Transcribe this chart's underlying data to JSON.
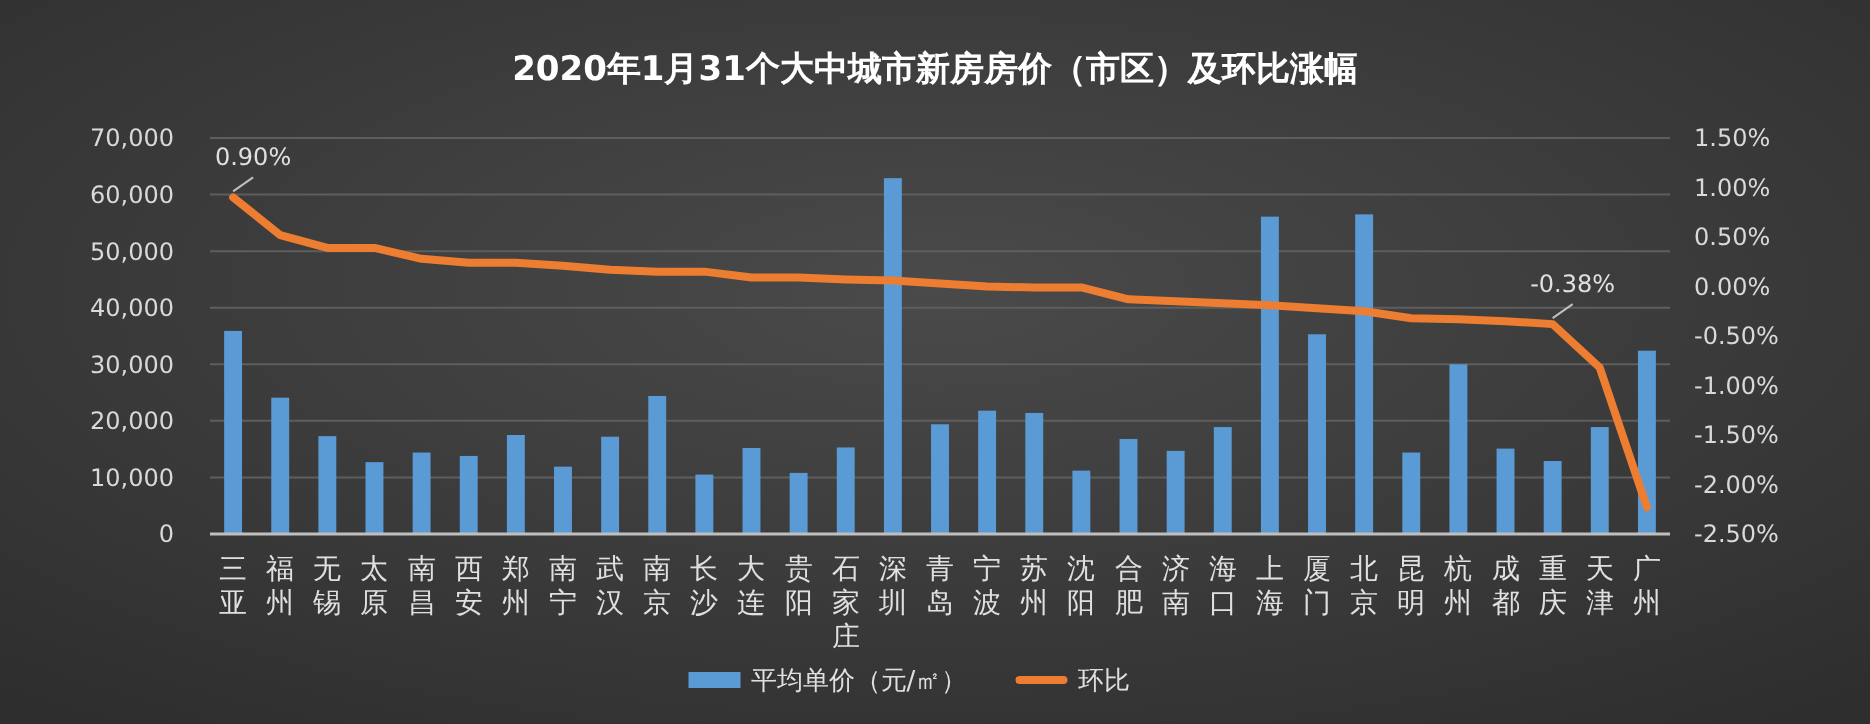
{
  "chart_data": {
    "type": "bar",
    "title": "2020年1月31个大中城市新房房价（市区）及环比涨幅",
    "categories": [
      "三亚",
      "福州",
      "无锡",
      "太原",
      "南昌",
      "西安",
      "郑州",
      "南宁",
      "武汉",
      "南京",
      "长沙",
      "大连",
      "贵阳",
      "石家庄",
      "深圳",
      "青岛",
      "宁波",
      "苏州",
      "沈阳",
      "合肥",
      "济南",
      "海口",
      "上海",
      "厦门",
      "北京",
      "昆明",
      "杭州",
      "成都",
      "重庆",
      "天津",
      "广州"
    ],
    "series": [
      {
        "name": "平均单价（元/㎡）",
        "color": "#5b9bd5",
        "values": [
          35900,
          24100,
          17300,
          12700,
          14400,
          13800,
          17500,
          11900,
          17200,
          24400,
          10500,
          15200,
          10800,
          15300,
          62900,
          19400,
          21800,
          21400,
          11200,
          16800,
          14700,
          18900,
          56100,
          35300,
          56500,
          14400,
          30000,
          15100,
          12900,
          18900,
          32400
        ]
      },
      {
        "name": "环比",
        "type": "line",
        "axis": "y2",
        "color": "#ed7d31",
        "values": [
          0.9,
          0.52,
          0.39,
          0.39,
          0.28,
          0.24,
          0.24,
          0.21,
          0.17,
          0.15,
          0.15,
          0.09,
          0.09,
          0.07,
          0.06,
          0.03,
          0.0,
          -0.01,
          -0.01,
          -0.13,
          -0.15,
          -0.17,
          -0.19,
          -0.22,
          -0.25,
          -0.32,
          -0.33,
          -0.35,
          -0.38,
          -0.82,
          -2.23
        ],
        "value_labels": [
          "0.90%",
          null,
          null,
          null,
          null,
          null,
          null,
          null,
          null,
          null,
          null,
          null,
          null,
          null,
          null,
          null,
          null,
          null,
          null,
          null,
          null,
          null,
          null,
          null,
          null,
          null,
          null,
          null,
          "-0.38%",
          null,
          null
        ]
      }
    ],
    "ylim": [
      0,
      70000
    ],
    "yticks": [
      0,
      {
        "value": 10000,
        "label": "10,000"
      },
      {
        "value": 20000,
        "label": "20,000"
      },
      {
        "value": 30000,
        "label": "30,000"
      },
      {
        "value": 40000,
        "label": "40,000"
      },
      {
        "value": 50000,
        "label": "50,000"
      },
      {
        "value": 60000,
        "label": "60,000"
      },
      {
        "value": 70000,
        "label": "70,000"
      }
    ],
    "y2lim": [
      -2.5,
      1.5
    ],
    "y2ticks": [
      {
        "value": -2.5,
        "label": "-2.50%"
      },
      {
        "value": -2,
        "label": "-2.00%"
      },
      {
        "value": -1.5,
        "label": "-1.50%"
      },
      {
        "value": -1,
        "label": "-1.00%"
      },
      {
        "value": -0.5,
        "label": "-0.50%"
      },
      {
        "value": 0,
        "label": "0.00%"
      },
      {
        "value": 0.5,
        "label": "0.50%"
      },
      {
        "value": 1,
        "label": "1.00%"
      },
      {
        "value": 1.5,
        "label": "1.50%"
      }
    ],
    "grid": "y",
    "legend": "bottom",
    "marker": "none",
    "line_style": "solid"
  }
}
